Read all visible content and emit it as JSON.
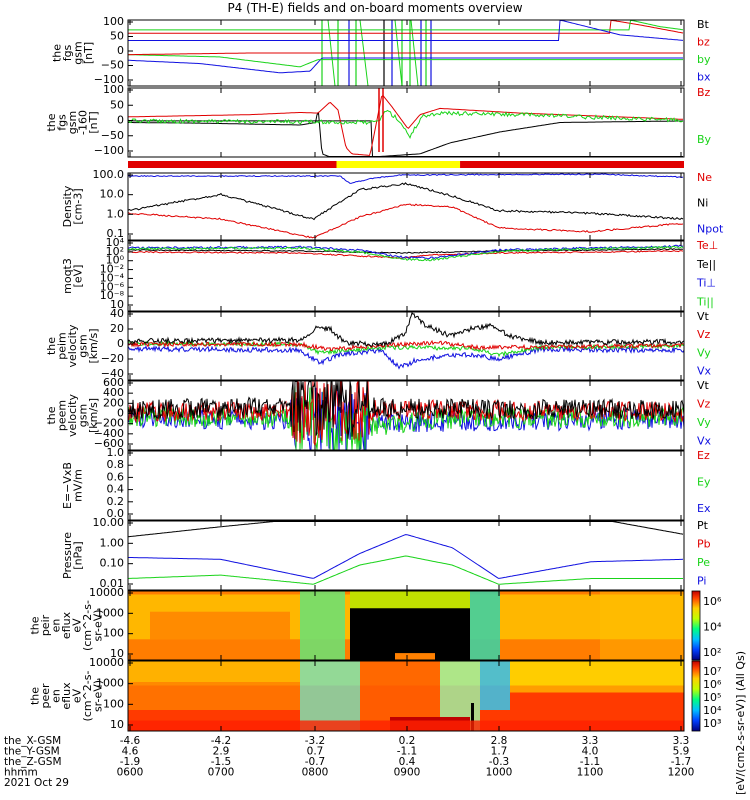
{
  "title": "P4 (TH-E) fields and on-board moments overview",
  "colors": {
    "black": "#000000",
    "red": "#e00000",
    "green": "#19d319",
    "blue": "#1010e0",
    "yellow": "#ffff00"
  },
  "panels": [
    {
      "id": "fgs",
      "ylabel": [
        "the",
        "fgs",
        "gsm",
        "[nT]"
      ],
      "ylim": [
        -100,
        100
      ],
      "ticks": [
        "100",
        "50",
        "0",
        "−50",
        "−100"
      ],
      "legend": [
        {
          "text": "Bt",
          "color": "#000000"
        },
        {
          "text": "bz",
          "color": "#e00000"
        },
        {
          "text": "by",
          "color": "#19d319"
        },
        {
          "text": "bx",
          "color": "#1010e0"
        }
      ]
    },
    {
      "id": "fgs-detrend",
      "ylabel": [
        "the",
        "fgs",
        "gsm",
        "-160",
        "[nT]"
      ],
      "ylim": [
        -120,
        100
      ],
      "ticks": [
        "100",
        "50",
        "0",
        "−50",
        "−100"
      ],
      "legend": [
        {
          "text": "Bz",
          "color": "#e00000"
        },
        {
          "text": "By",
          "color": "#19d319"
        }
      ]
    },
    {
      "id": "density",
      "ylabel": [
        "Density",
        "[cm-3]"
      ],
      "ylim": [
        0.1,
        100
      ],
      "log": true,
      "ticks": [
        "100.0",
        "10.0",
        "1.0",
        "0.1"
      ],
      "legend": [
        {
          "text": "Ne",
          "color": "#e00000"
        },
        {
          "text": "Ni",
          "color": "#000000"
        },
        {
          "text": "Npot",
          "color": "#1010e0"
        }
      ]
    },
    {
      "id": "temperature",
      "ylabel": [
        "moqt3",
        "[eV]"
      ],
      "log": true,
      "ticks": [
        "10⁴",
        "10²",
        "10⁰",
        "10⁻²",
        "10⁻⁴",
        "10⁻⁶",
        "10⁻⁸",
        "10"
      ],
      "legend": [
        {
          "text": "Te⊥",
          "color": "#e00000"
        },
        {
          "text": "Te||",
          "color": "#000000"
        },
        {
          "text": "Ti⊥",
          "color": "#1010e0"
        },
        {
          "text": "Ti||",
          "color": "#19d319"
        }
      ]
    },
    {
      "id": "peim-velocity",
      "ylabel": [
        "the",
        "peim",
        "velocity",
        "gsm",
        "[km/s]"
      ],
      "ylim": [
        -40,
        40
      ],
      "ticks": [
        "40",
        "20",
        "0",
        "−20",
        "−40"
      ],
      "legend": [
        {
          "text": "Vt",
          "color": "#000000"
        },
        {
          "text": "Vz",
          "color": "#e00000"
        },
        {
          "text": "Vy",
          "color": "#19d319"
        },
        {
          "text": "Vx",
          "color": "#1010e0"
        }
      ]
    },
    {
      "id": "peem-velocity",
      "ylabel": [
        "the",
        "peem",
        "velocity",
        "gsm",
        "[km/s]"
      ],
      "ylim": [
        -600,
        600
      ],
      "ticks": [
        "600",
        "400",
        "200",
        "0",
        "−200",
        "−400",
        "−600"
      ],
      "legend": [
        {
          "text": "Vt",
          "color": "#000000"
        },
        {
          "text": "Vz",
          "color": "#e00000"
        },
        {
          "text": "Vy",
          "color": "#19d319"
        },
        {
          "text": "Vx",
          "color": "#1010e0"
        }
      ]
    },
    {
      "id": "efield",
      "ylabel": [
        "E=−VxB",
        "mV/m"
      ],
      "ylim": [
        0,
        1
      ],
      "ticks": [
        "1.0",
        "0.8",
        "0.6",
        "0.4",
        "0.2",
        "0.0"
      ],
      "legend": [
        {
          "text": "Ez",
          "color": "#e00000"
        },
        {
          "text": "Ey",
          "color": "#19d319"
        },
        {
          "text": "Ex",
          "color": "#1010e0"
        }
      ]
    },
    {
      "id": "pressure",
      "ylabel": [
        "Pressure",
        "[nPa]"
      ],
      "log": true,
      "ticks": [
        "10.00",
        "1.00",
        "0.10",
        "0.01"
      ],
      "legend": [
        {
          "text": "Pt",
          "color": "#000000"
        },
        {
          "text": "Pb",
          "color": "#e00000"
        },
        {
          "text": "Pe",
          "color": "#19d319"
        },
        {
          "text": "Pi",
          "color": "#1010e0"
        }
      ]
    },
    {
      "id": "peir-spectrogram",
      "ylabel": [
        "the",
        "peir",
        "en",
        "eflux",
        "eV",
        "(cm^2-s-",
        "sr-eV)"
      ],
      "log": true,
      "ticks": [
        "10000",
        "1000",
        "100",
        "10"
      ],
      "colorbar_ticks": [
        "10⁶",
        "10⁴",
        "10²"
      ]
    },
    {
      "id": "peer-spectrogram",
      "ylabel": [
        "the",
        "peer",
        "en",
        "eflux",
        "eV",
        "(cm^2-s-",
        "sr-eV)"
      ],
      "log": true,
      "ticks": [
        "10000",
        "1000",
        "100",
        "10"
      ],
      "colorbar_ticks": [
        "10⁷",
        "10⁶",
        "10⁵",
        "10⁴",
        "10³"
      ]
    }
  ],
  "colorbar_label": "[eV/(cm2-s-sr-eV)] (All Qs)",
  "x_axis": {
    "rows": [
      {
        "label": "the_X-GSM",
        "values": [
          "-4.6",
          "-4.2",
          "-3.2",
          "0.2",
          "2.8",
          "3.3",
          "3.3"
        ]
      },
      {
        "label": "the_Y-GSM",
        "values": [
          "4.6",
          "2.9",
          "0.7",
          "-1.1",
          "1.7",
          "4.0",
          "5.9"
        ]
      },
      {
        "label": "the_Z-GSM",
        "values": [
          "-1.9",
          "-1.5",
          "-0.7",
          "0.4",
          "-0.3",
          "-1.1",
          "-1.7"
        ]
      },
      {
        "label": "hhmm",
        "values": [
          "0600",
          "0700",
          "0800",
          "0900",
          "1000",
          "1100",
          "1200"
        ]
      }
    ],
    "date": "2021 Oct 29"
  },
  "chart_data": {
    "type": "line",
    "title": "P4 (TH-E) fields and on-board moments overview",
    "xlabel": "hhmm",
    "x": [
      "0600",
      "0700",
      "0800",
      "0900",
      "1000",
      "1100",
      "1200"
    ],
    "date": "2021 Oct 29",
    "mode_bar": [
      {
        "from": "0600",
        "to": "0815",
        "color": "#e00000"
      },
      {
        "from": "0815",
        "to": "0935",
        "color": "#ffff00"
      },
      {
        "from": "0935",
        "to": "1200",
        "color": "#e00000"
      }
    ],
    "series": [
      {
        "name": "Ni",
        "panel": "density",
        "x": [
          "0600",
          "0700",
          "0800",
          "0830",
          "0900",
          "0930",
          "1000",
          "1100",
          "1200"
        ],
        "values": [
          2,
          12,
          0.8,
          20,
          40,
          10,
          2,
          1.5,
          0.8
        ]
      },
      {
        "name": "Ne",
        "panel": "density",
        "x": [
          "0600",
          "0700",
          "0800",
          "0830",
          "0900",
          "0930",
          "1000",
          "1100",
          "1200"
        ],
        "values": [
          1.5,
          0.8,
          0.1,
          1,
          4,
          3,
          0.3,
          0.2,
          0.5
        ]
      },
      {
        "name": "Pt",
        "panel": "pressure",
        "x": [
          "0600",
          "0700",
          "0800",
          "1100",
          "1200"
        ],
        "values": [
          3,
          10,
          30,
          30,
          4
        ]
      },
      {
        "name": "Pi",
        "panel": "pressure",
        "x": [
          "0600",
          "0700",
          "0800",
          "0830",
          "0900",
          "0930",
          "1000",
          "1100",
          "1200"
        ],
        "values": [
          0.25,
          0.2,
          0.02,
          0.4,
          4,
          0.8,
          0.02,
          0.15,
          0.2
        ]
      },
      {
        "name": "Pe",
        "panel": "pressure",
        "x": [
          "0600",
          "0700",
          "0800",
          "0830",
          "0900",
          "0930",
          "1000",
          "1100",
          "1200"
        ],
        "values": [
          0.02,
          0.03,
          0.01,
          0.1,
          0.3,
          0.1,
          0.01,
          0.02,
          0.02
        ]
      }
    ]
  }
}
